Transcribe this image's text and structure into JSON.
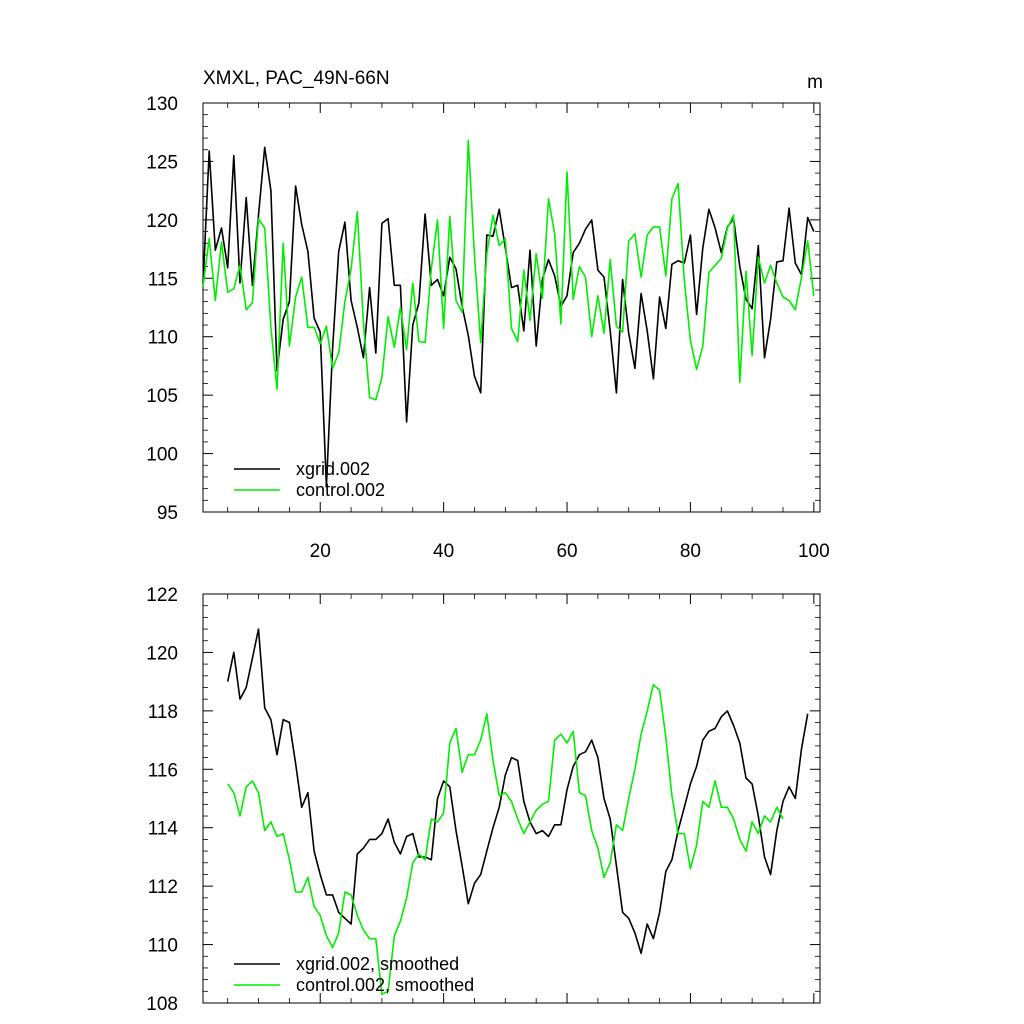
{
  "chart_data": [
    {
      "type": "line",
      "title": "XMXL, PAC_49N-66N",
      "units": "m",
      "xlim": [
        1,
        101
      ],
      "ylim": [
        95,
        130
      ],
      "x_ticks": [
        20,
        40,
        60,
        80,
        100
      ],
      "y_ticks": [
        95,
        100,
        105,
        110,
        115,
        120,
        125,
        130
      ],
      "x_tick_labels_shown": true,
      "legend_position": "bottom-left",
      "grid": false,
      "series": [
        {
          "name": "xgrid.002",
          "color": "#000000",
          "x_start": 1,
          "values": [
            114.5,
            125.9,
            117.4,
            119.3,
            115.9,
            125.5,
            114.6,
            121.9,
            114.4,
            120.4,
            126.2,
            122.5,
            107.1,
            111.5,
            113.0,
            122.9,
            119.6,
            117.3,
            111.6,
            110.4,
            97.2,
            109.0,
            117.3,
            119.8,
            113.1,
            110.8,
            108.2,
            114.2,
            108.6,
            119.7,
            120.1,
            114.4,
            114.4,
            102.7,
            111.0,
            112.9,
            120.5,
            114.4,
            114.9,
            113.5,
            116.8,
            115.8,
            112.6,
            110.1,
            106.6,
            105.2,
            118.7,
            118.6,
            120.9,
            117.6,
            114.2,
            114.4,
            110.5,
            117.4,
            109.2,
            114.9,
            116.6,
            115.2,
            112.6,
            113.5,
            117.2,
            118.0,
            119.2,
            120.0,
            115.7,
            115.1,
            110.5,
            105.2,
            114.9,
            110.3,
            107.3,
            113.7,
            110.5,
            106.4,
            113.4,
            110.7,
            116.2,
            116.5,
            116.3,
            118.7,
            111.9,
            117.6,
            120.9,
            119.3,
            117.2,
            119.4,
            120.1,
            116.0,
            113.2,
            112.4,
            117.8,
            108.2,
            111.5,
            116.4,
            116.5,
            121.0,
            116.3,
            115.3,
            120.2,
            119.0
          ]
        },
        {
          "name": "control.002",
          "color": "#00ee00",
          "x_start": 1,
          "values": [
            114.3,
            118.4,
            113.1,
            118.1,
            113.8,
            114.1,
            116.1,
            112.3,
            112.9,
            120.1,
            119.3,
            110.8,
            105.5,
            118.0,
            109.2,
            113.4,
            115.1,
            110.8,
            110.8,
            109.4,
            110.9,
            107.3,
            108.6,
            113.0,
            115.8,
            120.7,
            111.2,
            104.8,
            104.6,
            106.5,
            111.7,
            109.1,
            112.5,
            108.9,
            114.6,
            109.6,
            109.5,
            115.8,
            120.0,
            110.7,
            120.3,
            113.1,
            112.1,
            126.8,
            116.9,
            109.5,
            117.1,
            120.4,
            117.8,
            118.4,
            110.7,
            109.6,
            115.7,
            111.4,
            117.1,
            113.3,
            121.8,
            118.8,
            111.1,
            124.1,
            113.2,
            116.0,
            115.1,
            110.0,
            113.5,
            110.3,
            116.6,
            110.9,
            110.4,
            118.2,
            118.8,
            115.1,
            118.7,
            119.4,
            119.4,
            115.2,
            121.8,
            123.1,
            114.8,
            109.7,
            107.2,
            109.2,
            115.5,
            116.1,
            116.7,
            119.3,
            120.4,
            106.1,
            115.6,
            108.4,
            116.8,
            114.6,
            116.1,
            114.6,
            113.4,
            113.1,
            112.3,
            115.1,
            118.2,
            113.5
          ]
        }
      ]
    },
    {
      "type": "line",
      "title": "",
      "units": "",
      "xlim": [
        1,
        101
      ],
      "ylim": [
        108,
        122
      ],
      "x_ticks": [
        20,
        40,
        60,
        80,
        100
      ],
      "y_ticks": [
        108,
        110,
        112,
        114,
        116,
        118,
        120,
        122
      ],
      "x_tick_labels_shown": false,
      "legend_position": "bottom-left",
      "grid": false,
      "series": [
        {
          "name": "xgrid.002, smoothed",
          "color": "#000000",
          "x_start": 5,
          "values": [
            119.0,
            120.0,
            118.4,
            118.8,
            119.8,
            120.8,
            118.1,
            117.7,
            116.5,
            117.7,
            117.6,
            116.2,
            114.7,
            115.2,
            113.2,
            112.4,
            111.7,
            111.7,
            111.1,
            110.9,
            110.7,
            113.1,
            113.3,
            113.6,
            113.6,
            113.8,
            114.3,
            113.5,
            113.1,
            113.7,
            113.8,
            113.0,
            113.0,
            112.9,
            115.0,
            115.6,
            115.4,
            113.9,
            112.7,
            111.4,
            112.1,
            112.4,
            113.2,
            114.0,
            114.7,
            115.8,
            116.4,
            116.3,
            114.9,
            114.2,
            113.8,
            113.9,
            113.7,
            114.1,
            114.1,
            115.3,
            116.1,
            116.5,
            116.6,
            117.0,
            116.4,
            115.0,
            114.3,
            112.7,
            111.1,
            110.9,
            110.4,
            109.7,
            110.7,
            110.2,
            111.1,
            112.5,
            112.9,
            113.9,
            114.7,
            115.5,
            116.1,
            117.0,
            117.3,
            117.4,
            117.8,
            118.0,
            117.5,
            116.9,
            115.7,
            115.5,
            114.4,
            113.0,
            112.4,
            113.9,
            114.9,
            115.4,
            115.0,
            116.7,
            117.9
          ]
        },
        {
          "name": "control.002, smoothed",
          "color": "#00ee00",
          "x_start": 5,
          "values": [
            115.5,
            115.2,
            114.4,
            115.4,
            115.6,
            115.2,
            113.9,
            114.2,
            113.7,
            113.8,
            112.9,
            111.8,
            111.8,
            112.3,
            111.3,
            111.0,
            110.3,
            109.9,
            110.4,
            111.8,
            111.7,
            111.0,
            110.5,
            110.2,
            110.2,
            108.3,
            108.4,
            110.3,
            110.8,
            111.6,
            112.8,
            113.1,
            112.9,
            114.3,
            114.2,
            114.5,
            116.9,
            117.4,
            115.9,
            116.5,
            116.5,
            117.0,
            117.9,
            116.3,
            115.1,
            115.2,
            114.9,
            114.3,
            113.8,
            114.2,
            114.6,
            114.8,
            114.9,
            117.0,
            117.2,
            116.9,
            117.3,
            115.2,
            115.1,
            113.9,
            113.3,
            112.3,
            112.8,
            114.1,
            113.9,
            115.0,
            116.0,
            117.2,
            118.0,
            118.9,
            118.7,
            117.1,
            115.1,
            113.8,
            113.8,
            112.6,
            113.4,
            114.9,
            114.7,
            115.6,
            114.7,
            114.7,
            114.3,
            113.6,
            113.2,
            114.2,
            113.8,
            114.4,
            114.2,
            114.7,
            114.3
          ]
        }
      ]
    }
  ]
}
